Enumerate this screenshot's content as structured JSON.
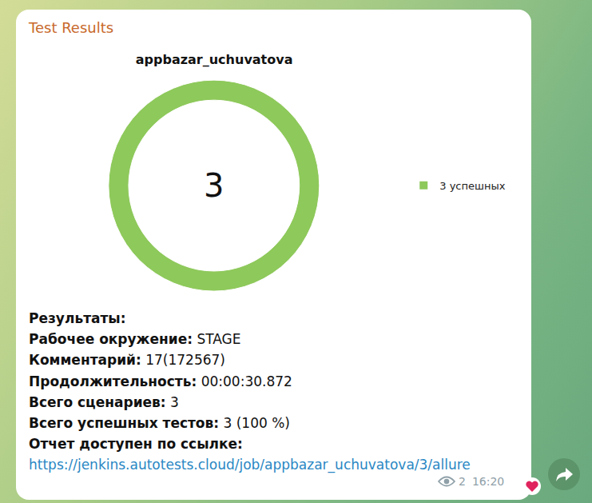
{
  "chart_data": {
    "type": "pie",
    "title": "appbazar_uchuvatova",
    "categories": [
      "3 успешных"
    ],
    "values": [
      3
    ],
    "colors": [
      "#8ec95b"
    ],
    "legend": "right",
    "annotations": [
      "3"
    ],
    "data_labels": false
  },
  "message": {
    "header": "Test Results",
    "lines": [
      {
        "label": "Результаты:"
      },
      {
        "label": "Рабочее окружение:",
        "value": "STAGE"
      },
      {
        "label": "Комментарий:",
        "value": "17(172567)"
      },
      {
        "label": "Продолжительность:",
        "value": "00:00:30.872"
      },
      {
        "label": "Всего сценариев:",
        "value": "3"
      },
      {
        "label": "Всего успешных тестов:",
        "value": "3 (100 %)"
      },
      {
        "label": "Отчет доступен по ссылке:"
      }
    ],
    "link": "https://jenkins.autotests.cloud/job/appbazar_uchuvatova/3/allure",
    "views": "2",
    "time": "16:20"
  }
}
